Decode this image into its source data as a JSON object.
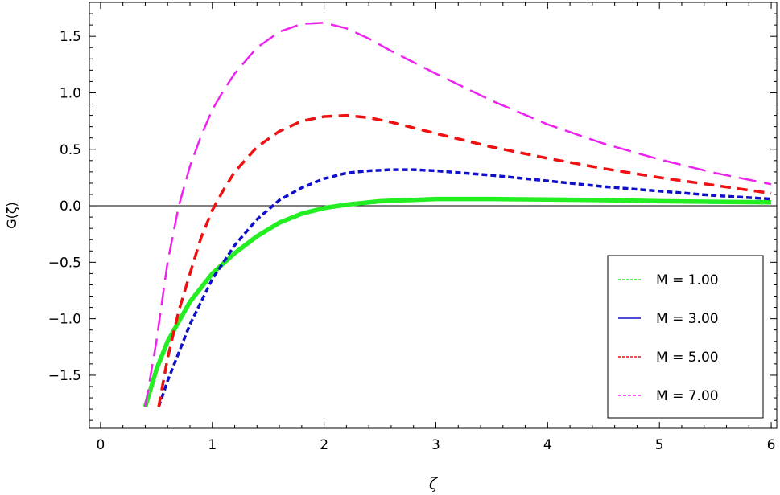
{
  "chart_data": {
    "type": "line",
    "title": "",
    "xlabel": "ζ",
    "ylabel": "G(ζ)",
    "xlim": [
      -0.1,
      6.05
    ],
    "ylim": [
      -1.97,
      1.8
    ],
    "x_ticks": [
      0,
      1,
      2,
      3,
      4,
      5,
      6
    ],
    "x_tick_labels": [
      "0",
      "1",
      "2",
      "3",
      "4",
      "5",
      "6"
    ],
    "y_ticks": [
      -1.5,
      -1.0,
      -0.5,
      0.0,
      0.5,
      1.0,
      1.5
    ],
    "y_tick_labels": [
      "−1.5",
      "−1.0",
      "−0.5",
      "0.0",
      "0.5",
      "1.0",
      "1.5"
    ],
    "grid": false,
    "legend_position": "bottom-right",
    "series": [
      {
        "name": "M = 1.00",
        "color": "#22ee22",
        "style": "solid-thick",
        "x": [
          0.4,
          0.5,
          0.6,
          0.8,
          1.0,
          1.2,
          1.4,
          1.6,
          1.8,
          2.0,
          2.2,
          2.5,
          3.0,
          3.5,
          4.0,
          4.5,
          5.0,
          5.5,
          6.0
        ],
        "y": [
          -1.78,
          -1.45,
          -1.2,
          -0.85,
          -0.6,
          -0.42,
          -0.27,
          -0.15,
          -0.07,
          -0.02,
          0.01,
          0.04,
          0.06,
          0.06,
          0.055,
          0.05,
          0.04,
          0.035,
          0.03
        ]
      },
      {
        "name": "M = 3.00",
        "color": "#1010cc",
        "style": "short-dash",
        "x": [
          0.52,
          0.6,
          0.8,
          1.0,
          1.2,
          1.4,
          1.6,
          1.8,
          2.0,
          2.2,
          2.4,
          2.6,
          2.8,
          3.0,
          3.5,
          4.0,
          4.5,
          5.0,
          5.5,
          6.0
        ],
        "y": [
          -1.78,
          -1.55,
          -1.05,
          -0.65,
          -0.35,
          -0.12,
          0.05,
          0.16,
          0.24,
          0.29,
          0.31,
          0.32,
          0.32,
          0.31,
          0.27,
          0.22,
          0.17,
          0.13,
          0.09,
          0.06
        ]
      },
      {
        "name": "M = 5.00",
        "color": "#ee1111",
        "style": "dash",
        "x": [
          0.52,
          0.6,
          0.7,
          0.8,
          0.9,
          1.0,
          1.1,
          1.2,
          1.4,
          1.6,
          1.8,
          2.0,
          2.2,
          2.4,
          2.6,
          3.0,
          3.5,
          4.0,
          4.5,
          5.0,
          5.5,
          6.0
        ],
        "y": [
          -1.78,
          -1.35,
          -0.93,
          -0.6,
          -0.28,
          -0.04,
          0.14,
          0.3,
          0.52,
          0.66,
          0.75,
          0.79,
          0.8,
          0.78,
          0.74,
          0.64,
          0.52,
          0.42,
          0.33,
          0.25,
          0.18,
          0.11
        ]
      },
      {
        "name": "M = 7.00",
        "color": "#ee22ee",
        "style": "long-dash",
        "x": [
          0.4,
          0.5,
          0.6,
          0.7,
          0.8,
          0.9,
          1.0,
          1.1,
          1.2,
          1.4,
          1.6,
          1.8,
          2.0,
          2.2,
          2.4,
          2.6,
          3.0,
          3.5,
          4.0,
          4.5,
          5.0,
          5.5,
          6.0
        ],
        "y": [
          -1.78,
          -1.2,
          -0.5,
          0.0,
          0.35,
          0.62,
          0.85,
          1.02,
          1.17,
          1.4,
          1.54,
          1.61,
          1.62,
          1.57,
          1.48,
          1.37,
          1.17,
          0.93,
          0.72,
          0.55,
          0.41,
          0.29,
          0.19
        ]
      }
    ]
  }
}
